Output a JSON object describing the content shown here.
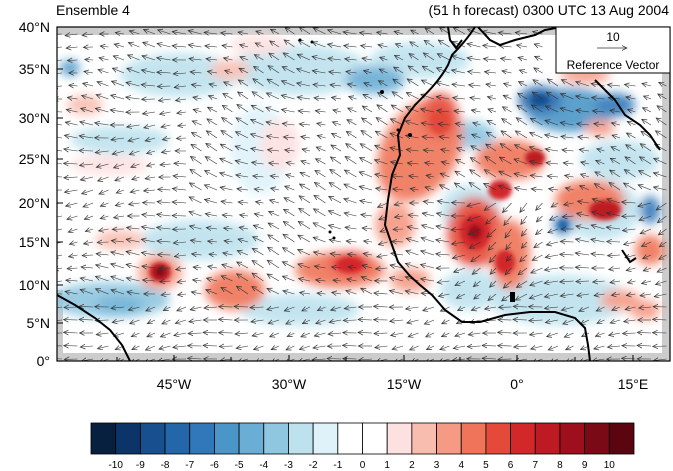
{
  "header": {
    "ensemble_label": "Ensemble 4",
    "forecast_label": "(51 h forecast) 0300 UTC 13 Aug 2004"
  },
  "map": {
    "lat_labels": [
      "40°N",
      "35°N",
      "30°N",
      "25°N",
      "20°N",
      "15°N",
      "10°N",
      "5°N",
      "0°"
    ],
    "lon_labels": [
      "45°W",
      "30°W",
      "15°W",
      "0°",
      "15°E"
    ],
    "reference_vector": {
      "magnitude": "10",
      "label": "Reference Vector"
    }
  },
  "colorbar": {
    "labels": [
      "-10",
      "-9",
      "-8",
      "-7",
      "-6",
      "-5",
      "-4",
      "-3",
      "-2",
      "-1",
      "0",
      "1",
      "2",
      "3",
      "4",
      "5",
      "6",
      "7",
      "8",
      "9",
      "10"
    ],
    "colors": [
      "#08203f",
      "#0c3468",
      "#174f8f",
      "#2466aa",
      "#3078b9",
      "#4b96c8",
      "#6aaed5",
      "#8fc6e0",
      "#bde2ee",
      "#dff2fa",
      "#ffffff",
      "#ffffff",
      "#fde0e0",
      "#f9bdb0",
      "#f59a84",
      "#ef7459",
      "#e44a39",
      "#d2282a",
      "#bd1a24",
      "#9e0f1e",
      "#7a0a16",
      "#5a0510"
    ]
  },
  "colors": {
    "land_coast": "#000000",
    "missing": "#cccccc"
  }
}
